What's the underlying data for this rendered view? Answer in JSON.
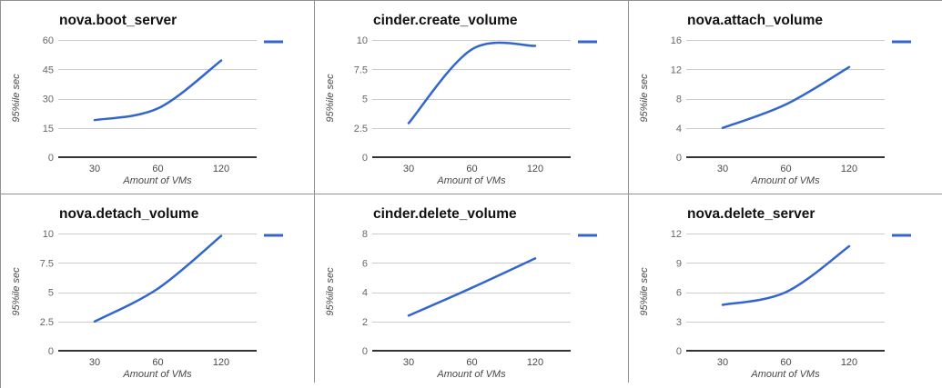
{
  "page": {
    "background_color": "#ffffff",
    "cell_border_color": "#919191"
  },
  "chart_style": {
    "line_color": "#3366cc",
    "grid_color": "#cccccc",
    "baseline_color": "#333333",
    "title_color": "#111111",
    "y_tick_color": "#666666",
    "x_tick_color": "#4a4a4a",
    "axis_title_color": "#484848"
  },
  "chart_data": [
    {
      "type": "line",
      "title": "nova.boot_server",
      "xlabel": "Amount of VMs",
      "ylabel": "95%ile sec",
      "categories": [
        "30",
        "60",
        "120"
      ],
      "x": [
        30,
        60,
        120
      ],
      "values": [
        19,
        25,
        49.5
      ],
      "yticks": [
        0,
        15,
        30,
        45,
        60
      ],
      "ylim": [
        0,
        60
      ],
      "grid": true,
      "legend": "dash-right"
    },
    {
      "type": "line",
      "title": "cinder.create_volume",
      "xlabel": "Amount of VMs",
      "ylabel": "95%ile sec",
      "categories": [
        "30",
        "60",
        "120"
      ],
      "x": [
        30,
        60,
        120
      ],
      "values": [
        2.9,
        9.2,
        9.5
      ],
      "yticks": [
        0,
        2.5,
        5,
        7.5,
        10
      ],
      "ylim": [
        0,
        10
      ],
      "grid": true,
      "legend": "dash-right"
    },
    {
      "type": "line",
      "title": "nova.attach_volume",
      "xlabel": "Amount of VMs",
      "ylabel": "95%ile sec",
      "categories": [
        "30",
        "60",
        "120"
      ],
      "x": [
        30,
        60,
        120
      ],
      "values": [
        4,
        7.2,
        12.3
      ],
      "yticks": [
        0,
        4,
        8,
        12,
        16
      ],
      "ylim": [
        0,
        16
      ],
      "grid": true,
      "legend": "dash-right"
    },
    {
      "type": "line",
      "title": "nova.detach_volume",
      "xlabel": "Amount of VMs",
      "ylabel": "95%ile sec",
      "categories": [
        "30",
        "60",
        "120"
      ],
      "x": [
        30,
        60,
        120
      ],
      "values": [
        2.5,
        5.3,
        9.8
      ],
      "yticks": [
        0,
        2.5,
        5,
        7.5,
        10
      ],
      "ylim": [
        0,
        10
      ],
      "grid": true,
      "legend": "dash-right"
    },
    {
      "type": "line",
      "title": "cinder.delete_volume",
      "xlabel": "Amount of VMs",
      "ylabel": "95%ile sec",
      "categories": [
        "30",
        "60",
        "120"
      ],
      "x": [
        30,
        60,
        120
      ],
      "values": [
        2.4,
        4.3,
        6.3
      ],
      "yticks": [
        0,
        2,
        4,
        6,
        8
      ],
      "ylim": [
        0,
        8
      ],
      "grid": true,
      "legend": "dash-right"
    },
    {
      "type": "line",
      "title": "nova.delete_server",
      "xlabel": "Amount of VMs",
      "ylabel": "95%ile sec",
      "categories": [
        "30",
        "60",
        "120"
      ],
      "x": [
        30,
        60,
        120
      ],
      "values": [
        4.7,
        6,
        10.7
      ],
      "yticks": [
        0,
        3,
        6,
        9,
        12
      ],
      "ylim": [
        0,
        12
      ],
      "grid": true,
      "legend": "dash-right"
    }
  ]
}
